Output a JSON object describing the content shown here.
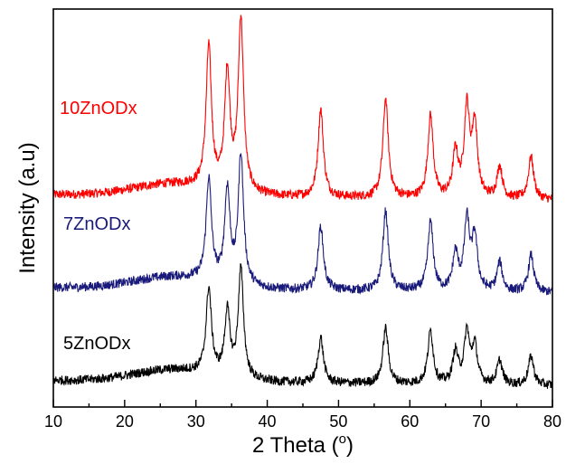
{
  "chart_data": {
    "type": "line",
    "title": "",
    "xlabel": "2 Theta (°)",
    "ylabel": "Intensity (a.u)",
    "xlim": [
      10,
      80
    ],
    "xticks": [
      10,
      20,
      30,
      40,
      50,
      60,
      70,
      80
    ],
    "y_tick_labels": false,
    "grid": false,
    "legend": "inline labels left of each curve",
    "series": [
      {
        "name": "10ZnODx",
        "color": "#ff0000",
        "baseline": 0.75,
        "scale": 1.0,
        "peaks": [
          {
            "x": 31.8,
            "h": 0.53
          },
          {
            "x": 34.4,
            "h": 0.44
          },
          {
            "x": 36.3,
            "h": 0.65
          },
          {
            "x": 47.5,
            "h": 0.33
          },
          {
            "x": 56.6,
            "h": 0.37
          },
          {
            "x": 62.9,
            "h": 0.31
          },
          {
            "x": 66.4,
            "h": 0.17
          },
          {
            "x": 68.0,
            "h": 0.33
          },
          {
            "x": 69.1,
            "h": 0.27
          },
          {
            "x": 72.6,
            "h": 0.12
          },
          {
            "x": 77.0,
            "h": 0.16
          }
        ]
      },
      {
        "name": "7ZnODx",
        "color": "#1a1a7a",
        "baseline": 0.4,
        "scale": 1.0,
        "peaks": [
          {
            "x": 31.8,
            "h": 0.38
          },
          {
            "x": 34.4,
            "h": 0.35
          },
          {
            "x": 36.3,
            "h": 0.49
          },
          {
            "x": 47.5,
            "h": 0.24
          },
          {
            "x": 56.6,
            "h": 0.3
          },
          {
            "x": 62.9,
            "h": 0.26
          },
          {
            "x": 66.4,
            "h": 0.14
          },
          {
            "x": 68.0,
            "h": 0.26
          },
          {
            "x": 69.1,
            "h": 0.2
          },
          {
            "x": 72.6,
            "h": 0.11
          },
          {
            "x": 77.0,
            "h": 0.14
          }
        ]
      },
      {
        "name": "5ZnODx",
        "color": "#000000",
        "baseline": 0.05,
        "scale": 1.0,
        "peaks": [
          {
            "x": 31.8,
            "h": 0.32
          },
          {
            "x": 34.4,
            "h": 0.24
          },
          {
            "x": 36.3,
            "h": 0.41
          },
          {
            "x": 47.5,
            "h": 0.17
          },
          {
            "x": 56.6,
            "h": 0.21
          },
          {
            "x": 62.9,
            "h": 0.2
          },
          {
            "x": 66.4,
            "h": 0.12
          },
          {
            "x": 68.0,
            "h": 0.19
          },
          {
            "x": 69.1,
            "h": 0.14
          },
          {
            "x": 72.6,
            "h": 0.09
          },
          {
            "x": 77.0,
            "h": 0.11
          }
        ]
      }
    ]
  },
  "labels": {
    "xlabel_main": "2 Theta (",
    "xlabel_deg": "o",
    "xlabel_close": ")",
    "ylabel": "Intensity (a.u)"
  }
}
